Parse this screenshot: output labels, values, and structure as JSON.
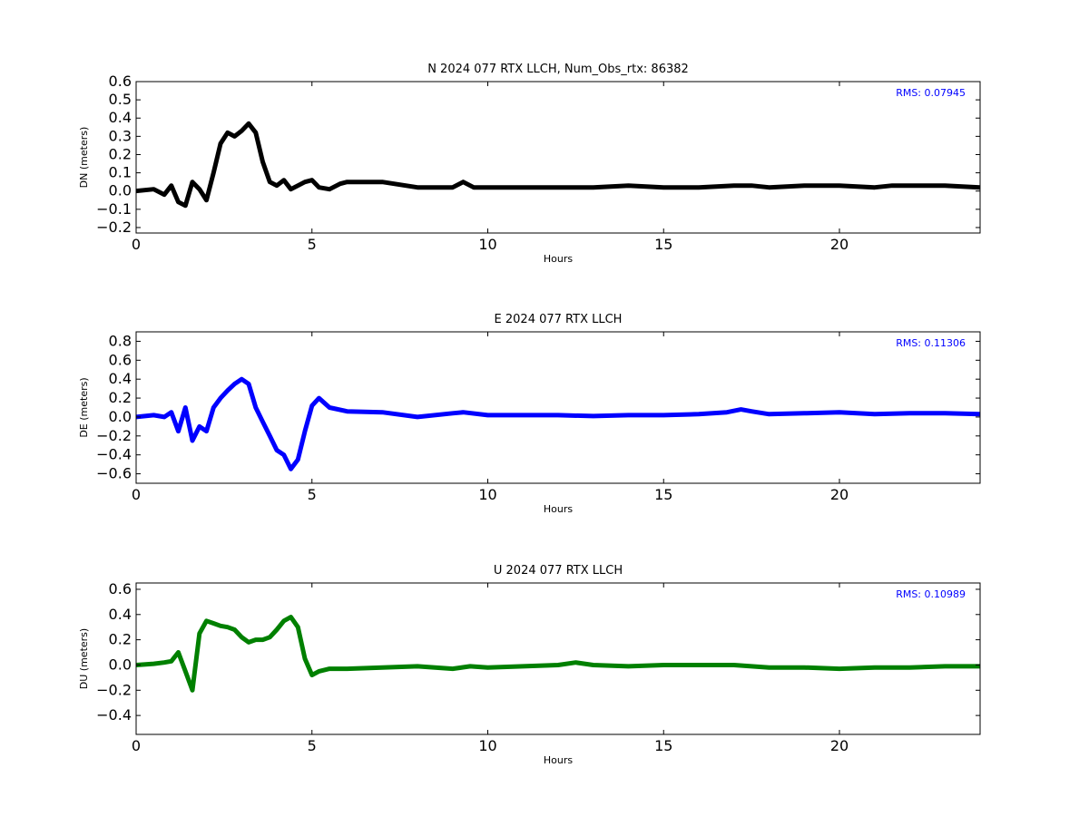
{
  "chart_data": [
    {
      "type": "line",
      "title": "N 2024 077 RTX  LLCH, Num_Obs_rtx: 86382",
      "xlabel": "Hours",
      "ylabel": "DN (meters)",
      "xlim": [
        0,
        24
      ],
      "ylim": [
        -0.23,
        0.6
      ],
      "xticks": [
        0,
        5,
        10,
        15,
        20
      ],
      "yticks": [
        0.6,
        0.5,
        0.4,
        0.3,
        0.2,
        0.1,
        0.0,
        -0.1,
        -0.2
      ],
      "ytick_labels": [
        "0.6",
        "0.5",
        "0.4",
        "0.3",
        "0.2",
        "0.1",
        "0.0",
        "−0.1",
        "−0.2"
      ],
      "grid": false,
      "color": "#000000",
      "rms_label": "RMS:  0.07945",
      "rms_color": "#0000ff",
      "x": [
        0,
        0.5,
        0.8,
        1.0,
        1.2,
        1.4,
        1.6,
        1.8,
        2.0,
        2.2,
        2.4,
        2.6,
        2.8,
        3.0,
        3.2,
        3.4,
        3.6,
        3.8,
        4.0,
        4.2,
        4.4,
        4.6,
        4.8,
        5.0,
        5.2,
        5.5,
        5.8,
        6.0,
        7.0,
        8.0,
        9.0,
        9.3,
        9.6,
        10.0,
        11.0,
        12.0,
        12.5,
        13.0,
        14.0,
        15.0,
        16.0,
        17.0,
        17.5,
        18.0,
        19.0,
        20.0,
        21.0,
        21.5,
        22.0,
        23.0,
        24.0
      ],
      "y": [
        0.0,
        0.01,
        -0.02,
        0.03,
        -0.06,
        -0.08,
        0.05,
        0.01,
        -0.05,
        0.1,
        0.26,
        0.32,
        0.3,
        0.33,
        0.37,
        0.32,
        0.16,
        0.05,
        0.03,
        0.06,
        0.01,
        0.03,
        0.05,
        0.06,
        0.02,
        0.01,
        0.04,
        0.05,
        0.05,
        0.02,
        0.02,
        0.05,
        0.02,
        0.02,
        0.02,
        0.02,
        0.02,
        0.02,
        0.03,
        0.02,
        0.02,
        0.03,
        0.03,
        0.02,
        0.03,
        0.03,
        0.02,
        0.03,
        0.03,
        0.03,
        0.02
      ]
    },
    {
      "type": "line",
      "title": "E 2024 077 RTX  LLCH",
      "xlabel": "Hours",
      "ylabel": "DE (meters)",
      "xlim": [
        0,
        24
      ],
      "ylim": [
        -0.7,
        0.9
      ],
      "xticks": [
        0,
        5,
        10,
        15,
        20
      ],
      "yticks": [
        0.8,
        0.6,
        0.4,
        0.2,
        0.0,
        -0.2,
        -0.4,
        -0.6
      ],
      "ytick_labels": [
        "0.8",
        "0.6",
        "0.4",
        "0.2",
        "0.0",
        "−0.2",
        "−0.4",
        "−0.6"
      ],
      "grid": false,
      "color": "#0000ff",
      "rms_label": "RMS:  0.11306",
      "rms_color": "#0000ff",
      "x": [
        0,
        0.5,
        0.8,
        1.0,
        1.2,
        1.4,
        1.6,
        1.8,
        2.0,
        2.2,
        2.4,
        2.6,
        2.8,
        3.0,
        3.2,
        3.4,
        3.6,
        3.8,
        4.0,
        4.2,
        4.4,
        4.6,
        4.8,
        5.0,
        5.2,
        5.5,
        6.0,
        7.0,
        8.0,
        9.0,
        9.3,
        10.0,
        11.0,
        12.0,
        13.0,
        14.0,
        15.0,
        16.0,
        16.8,
        17.2,
        17.5,
        18.0,
        19.0,
        20.0,
        21.0,
        22.0,
        23.0,
        24.0
      ],
      "y": [
        0.0,
        0.02,
        0.0,
        0.05,
        -0.15,
        0.1,
        -0.25,
        -0.1,
        -0.15,
        0.1,
        0.2,
        0.28,
        0.35,
        0.4,
        0.35,
        0.1,
        -0.05,
        -0.2,
        -0.35,
        -0.4,
        -0.55,
        -0.45,
        -0.15,
        0.12,
        0.2,
        0.1,
        0.06,
        0.05,
        0.0,
        0.04,
        0.05,
        0.02,
        0.02,
        0.02,
        0.01,
        0.02,
        0.02,
        0.03,
        0.05,
        0.08,
        0.06,
        0.03,
        0.04,
        0.05,
        0.03,
        0.04,
        0.04,
        0.03
      ]
    },
    {
      "type": "line",
      "title": "U 2024 077 RTX  LLCH",
      "xlabel": "Hours",
      "ylabel": "DU (meters)",
      "xlim": [
        0,
        24
      ],
      "ylim": [
        -0.55,
        0.65
      ],
      "xticks": [
        0,
        5,
        10,
        15,
        20
      ],
      "yticks": [
        0.6,
        0.4,
        0.2,
        0.0,
        -0.2,
        -0.4
      ],
      "ytick_labels": [
        "0.6",
        "0.4",
        "0.2",
        "0.0",
        "−0.2",
        "−0.4"
      ],
      "grid": false,
      "color": "#008000",
      "rms_label": "RMS:  0.10989",
      "rms_color": "#0000ff",
      "x": [
        0,
        0.5,
        0.8,
        1.0,
        1.2,
        1.4,
        1.6,
        1.8,
        2.0,
        2.2,
        2.4,
        2.6,
        2.8,
        3.0,
        3.2,
        3.4,
        3.6,
        3.8,
        4.0,
        4.2,
        4.4,
        4.6,
        4.8,
        5.0,
        5.2,
        5.5,
        6.0,
        7.0,
        8.0,
        9.0,
        9.5,
        10.0,
        11.0,
        12.0,
        12.5,
        13.0,
        14.0,
        15.0,
        16.0,
        17.0,
        18.0,
        19.0,
        20.0,
        21.0,
        22.0,
        23.0,
        24.0
      ],
      "y": [
        0.0,
        0.01,
        0.02,
        0.03,
        0.1,
        -0.05,
        -0.2,
        0.25,
        0.35,
        0.33,
        0.31,
        0.3,
        0.28,
        0.22,
        0.18,
        0.2,
        0.2,
        0.22,
        0.28,
        0.35,
        0.38,
        0.3,
        0.05,
        -0.08,
        -0.05,
        -0.03,
        -0.03,
        -0.02,
        -0.01,
        -0.03,
        -0.01,
        -0.02,
        -0.01,
        0.0,
        0.02,
        0.0,
        -0.01,
        0.0,
        0.0,
        0.0,
        -0.02,
        -0.02,
        -0.03,
        -0.02,
        -0.02,
        -0.01,
        -0.01
      ]
    }
  ]
}
